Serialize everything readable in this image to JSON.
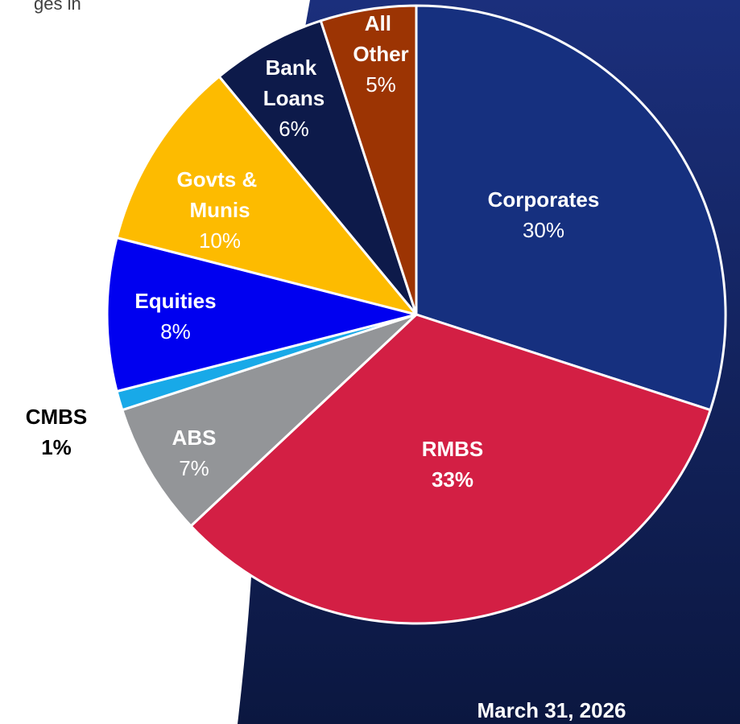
{
  "chart_data": {
    "type": "pie",
    "subtitle": "ges in",
    "annotation": "March 31, 2026",
    "categories": [
      "Corporates",
      "RMBS",
      "ABS",
      "CMBS",
      "Equities",
      "Govts & Munis",
      "Bank Loans",
      "All Other"
    ],
    "values": [
      30,
      33,
      7,
      1,
      8,
      10,
      6,
      5
    ],
    "value_labels": [
      "30%",
      "33%",
      "7%",
      "1%",
      "8%",
      "10%",
      "6%",
      "5%"
    ],
    "colors": [
      "#16307f",
      "#d31f44",
      "#939598",
      "#18a9e8",
      "#0000f0",
      "#fdbb00",
      "#0d1a4a",
      "#9c3403"
    ]
  }
}
